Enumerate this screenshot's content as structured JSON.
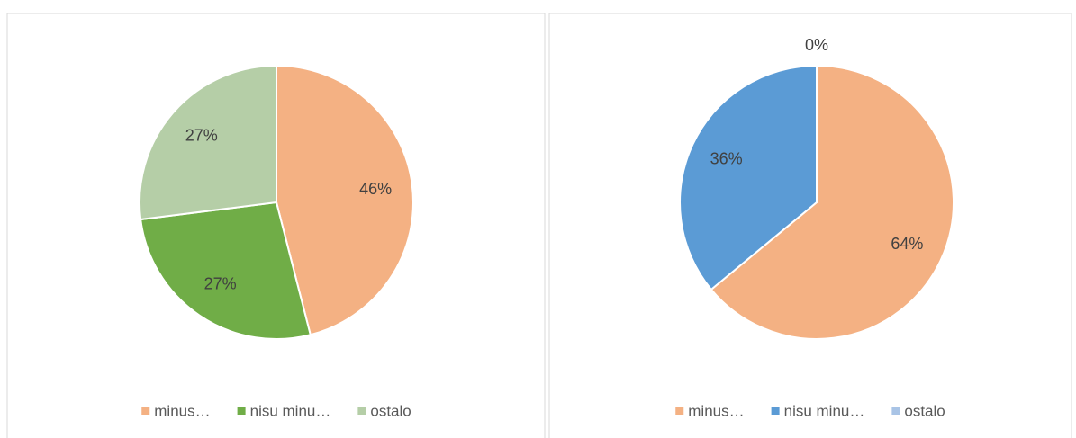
{
  "chart_data": [
    {
      "type": "pie",
      "categories": [
        "minus…",
        "nisu minu…",
        "ostalo"
      ],
      "values": [
        46,
        27,
        27
      ],
      "value_labels": [
        "46%",
        "27%",
        "27%"
      ],
      "colors": [
        "#f4b183",
        "#70ad47",
        "#b5cea7"
      ],
      "legend": "bottom"
    },
    {
      "type": "pie",
      "categories": [
        "minus…",
        "nisu minu…",
        "ostalo"
      ],
      "values": [
        64,
        36,
        0
      ],
      "value_labels": [
        "64%",
        "36%",
        "0%"
      ],
      "colors": [
        "#f4b183",
        "#5b9bd5",
        "#a9c4e6"
      ],
      "legend": "bottom"
    }
  ]
}
